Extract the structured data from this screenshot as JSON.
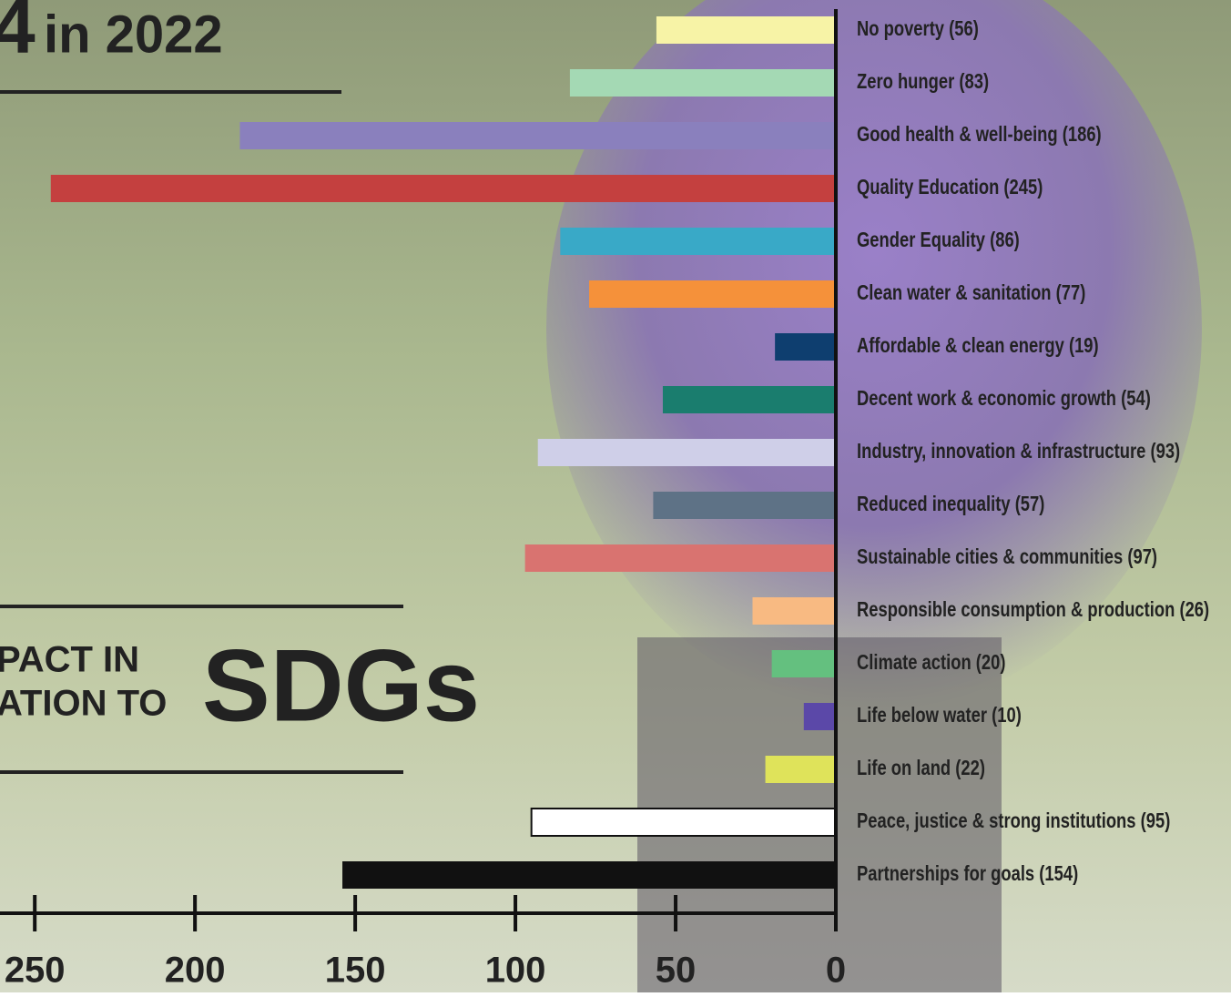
{
  "chart_data": {
    "type": "barh",
    "annotations": [
      "4",
      "in 2022",
      "PACT IN",
      "ATION TO",
      "SDGs"
    ],
    "categories": [
      "No poverty (56)",
      "Zero hunger (83)",
      "Good health & well-being (186)",
      "Quality Education (245)",
      "Gender Equality (86)",
      "Clean water & sanitation (77)",
      "Affordable & clean energy (19)",
      "Decent work & economic growth (54)",
      "Industry, innovation & infrastructure (93)",
      "Reduced inequality (57)",
      "Sustainable cities & communities (97)",
      "Responsible consumption & production (26)",
      "Climate action (20)",
      "Life below water (10)",
      "Life on land (22)",
      "Peace, justice & strong institutions (95)",
      "Partnerships for goals (154)"
    ],
    "values": [
      56,
      83,
      186,
      245,
      86,
      77,
      19,
      54,
      93,
      57,
      97,
      26,
      20,
      10,
      22,
      95,
      154
    ],
    "colors": [
      "#f7f3a6",
      "#a4d9b4",
      "#8a80bd",
      "#c4403f",
      "#39a9c7",
      "#f5913a",
      "#0e3e6f",
      "#1a7d6e",
      "#cfcfe8",
      "#5e7286",
      "#d97370",
      "#f8ba82",
      "#64c07f",
      "#5b48a8",
      "#dfe35a",
      "#ffffff",
      "#111111"
    ],
    "xlim": [
      0,
      260
    ],
    "xticks": [
      0,
      50,
      100,
      150,
      200,
      250
    ],
    "reversed": true
  }
}
